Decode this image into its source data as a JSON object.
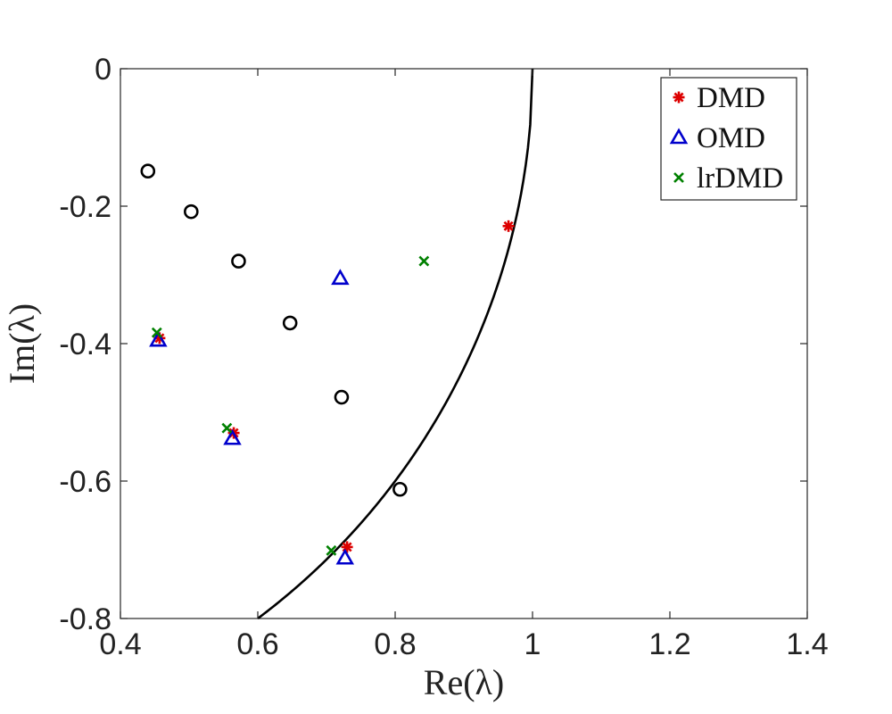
{
  "chart_data": {
    "type": "scatter",
    "title": "",
    "xlabel": "Re(λ)",
    "ylabel": "Im(λ)",
    "xlim": [
      0.4,
      1.4
    ],
    "ylim": [
      -0.8,
      0
    ],
    "xticks": [
      0.4,
      0.6,
      0.8,
      1.0,
      1.2,
      1.4
    ],
    "xtick_labels": [
      "0.4",
      "0.6",
      "0.8",
      "1",
      "1.2",
      "1.4"
    ],
    "yticks": [
      0,
      -0.2,
      -0.4,
      -0.6,
      -0.8
    ],
    "ytick_labels": [
      "0",
      "-0.2",
      "-0.4",
      "-0.6",
      "-0.8"
    ],
    "grid": false,
    "legend_position": "top-right",
    "unit_circle": {
      "name": "unit circle |λ| = 1",
      "color": "#000000",
      "x_range": [
        0.6,
        1.0
      ]
    },
    "series": [
      {
        "name": "",
        "marker": "circle",
        "color": "#000000",
        "in_legend": false,
        "x": [
          0.44,
          0.503,
          0.572,
          0.647,
          0.722,
          0.807
        ],
        "y": [
          -0.149,
          -0.208,
          -0.28,
          -0.37,
          -0.478,
          -0.612
        ]
      },
      {
        "name": "DMD",
        "marker": "asterisk",
        "color": "#dd0000",
        "in_legend": true,
        "x": [
          0.965,
          0.457,
          0.565,
          0.73
        ],
        "y": [
          -0.229,
          -0.392,
          -0.53,
          -0.696
        ]
      },
      {
        "name": "OMD",
        "marker": "triangle",
        "color": "#0000cc",
        "in_legend": true,
        "x": [
          0.72,
          0.455,
          0.563,
          0.727
        ],
        "y": [
          -0.305,
          -0.395,
          -0.538,
          -0.712
        ]
      },
      {
        "name": "lrDMD",
        "marker": "x",
        "color": "#008000",
        "in_legend": true,
        "x": [
          0.842,
          0.453,
          0.555,
          0.707
        ],
        "y": [
          -0.28,
          -0.384,
          -0.523,
          -0.701
        ]
      }
    ]
  }
}
